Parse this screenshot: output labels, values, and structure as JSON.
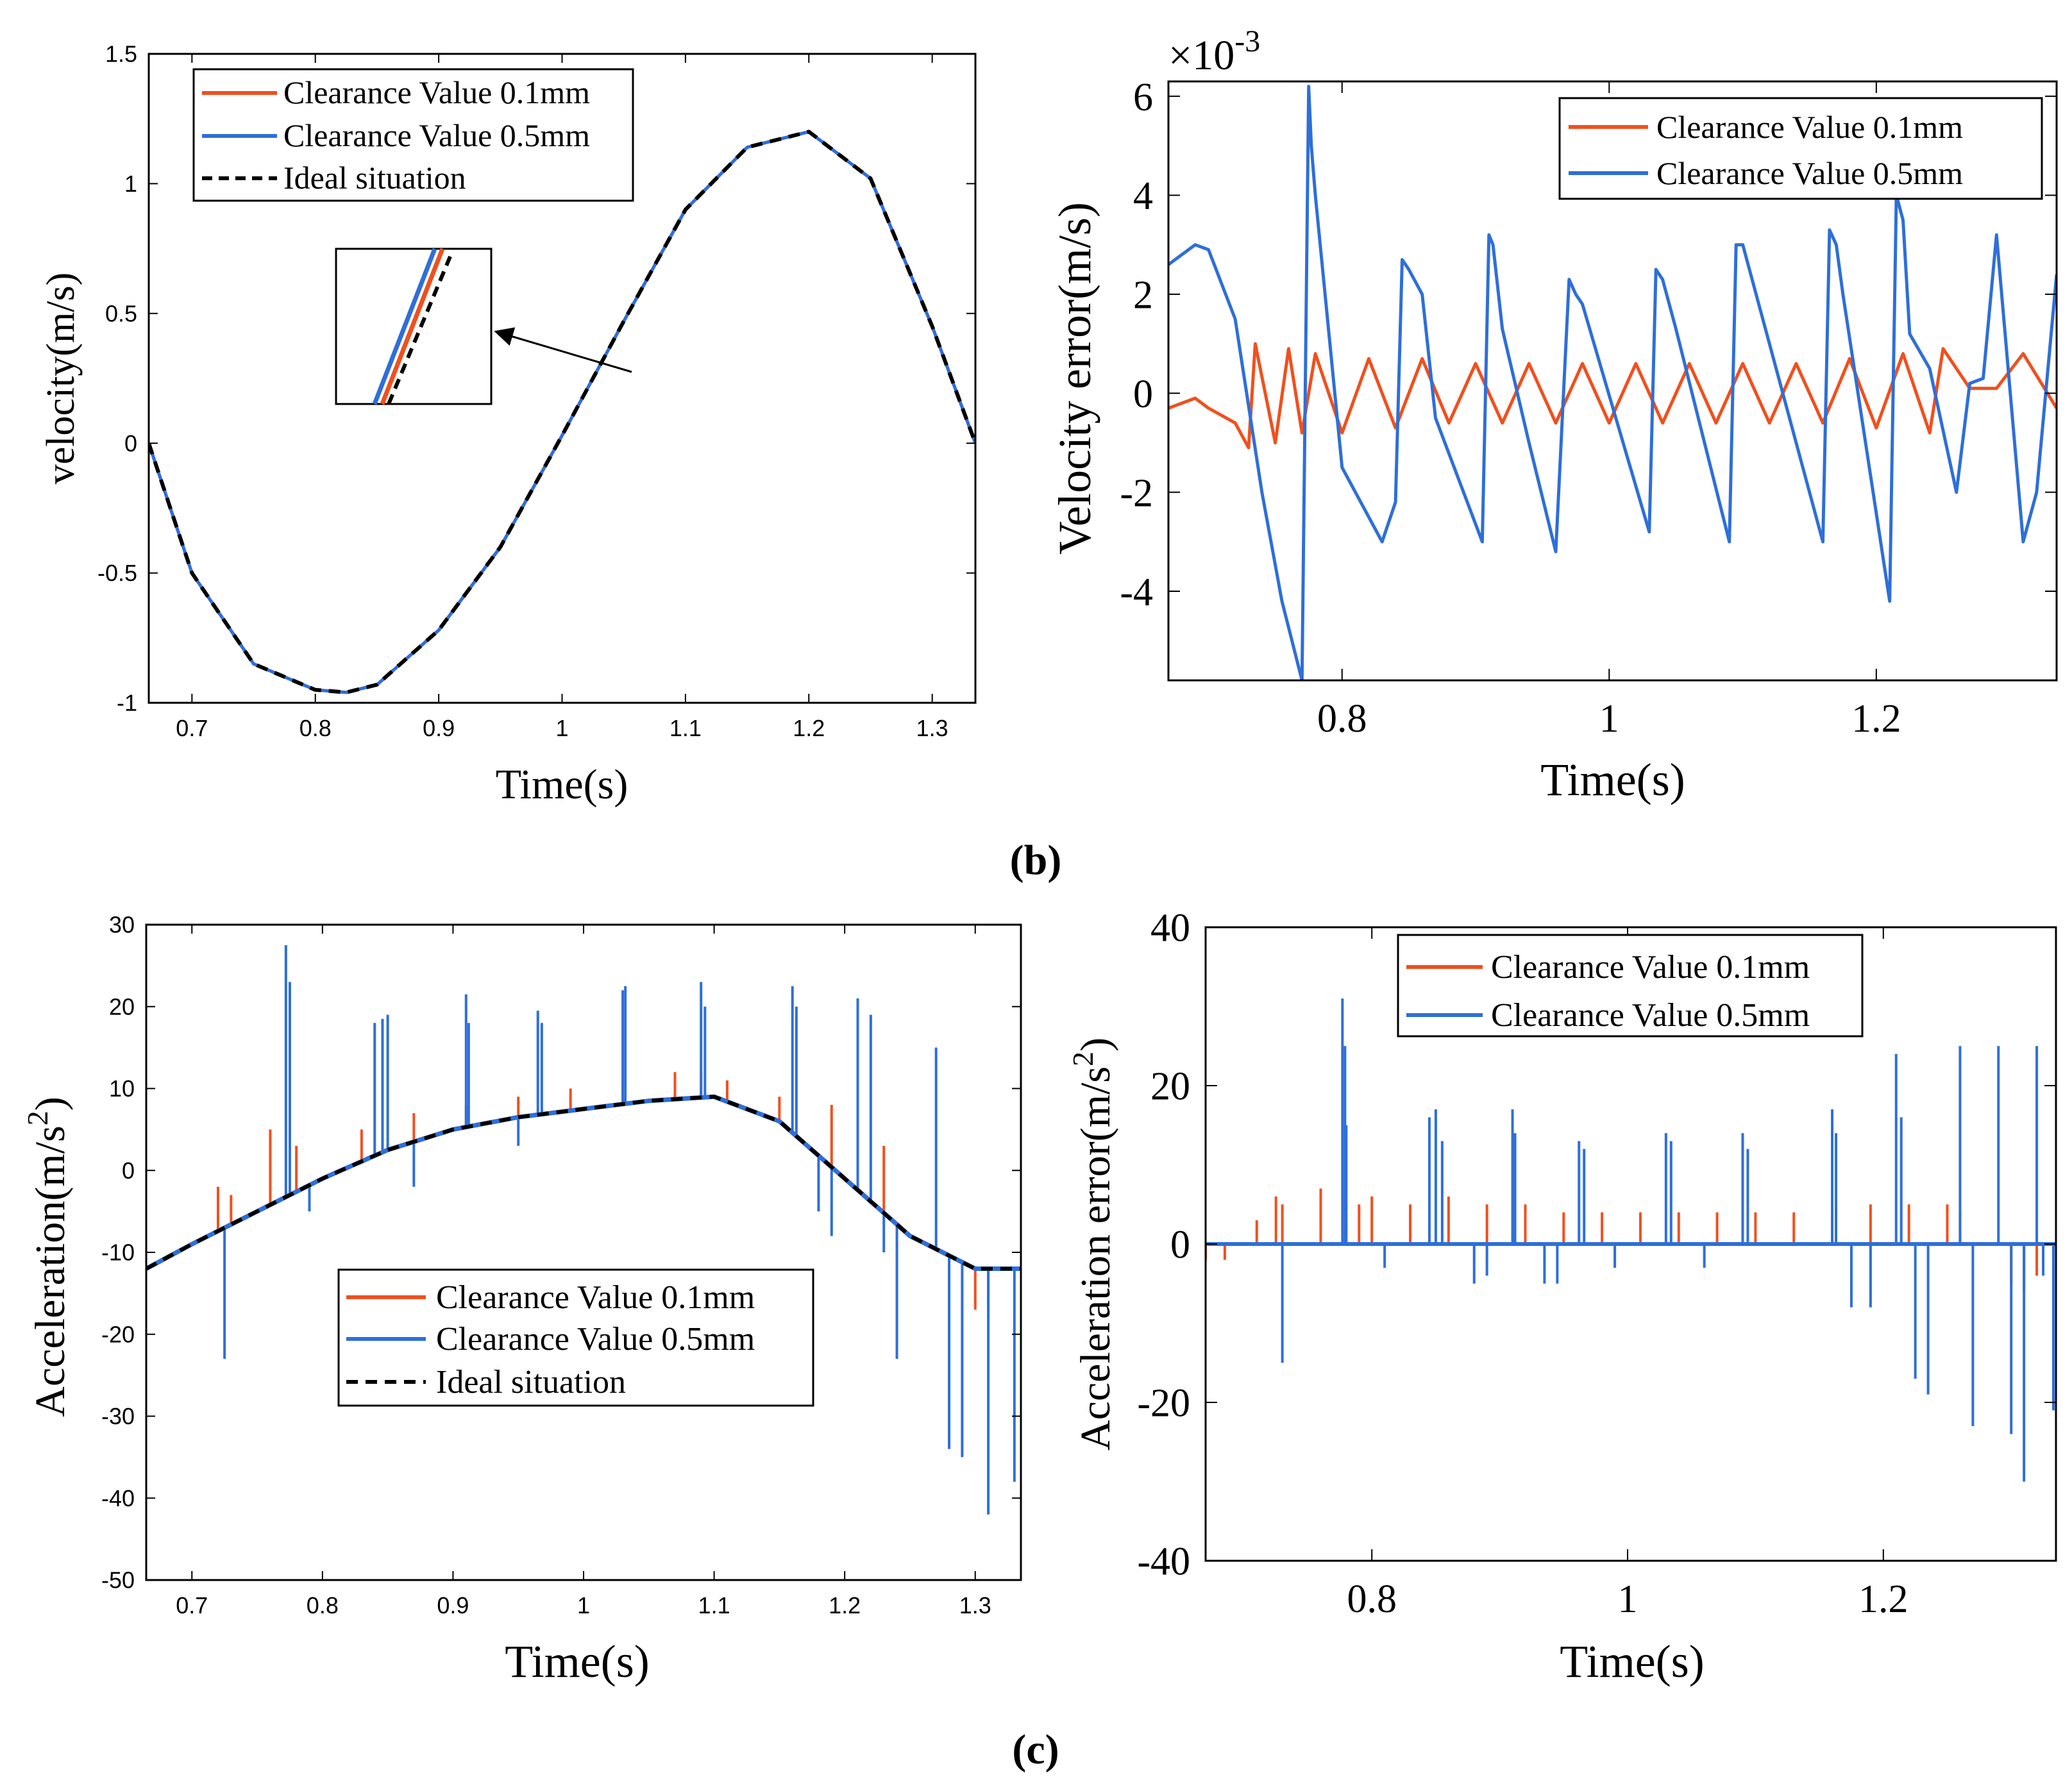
{
  "figure": {
    "caption_b": "(b)",
    "caption_c": "(c)"
  },
  "chart_data": [
    {
      "id": "velocity",
      "type": "line",
      "title": "",
      "xlabel": "Time(s)",
      "ylabel": "velocity(m/s)",
      "xlim": [
        0.665,
        1.335
      ],
      "ylim": [
        -1,
        1.5
      ],
      "xticks": [
        0.7,
        0.8,
        0.9,
        1,
        1.1,
        1.2,
        1.3
      ],
      "xtick_labels": [
        "0.7",
        "0.8",
        "0.9",
        "1",
        "1.1",
        "1.2",
        "1.3"
      ],
      "yticks": [
        -1,
        -0.5,
        0,
        0.5,
        1,
        1.5
      ],
      "ytick_labels": [
        "-1",
        "-0.5",
        "0",
        "0.5",
        "1",
        "1.5"
      ],
      "legend_position": "top-left",
      "series": [
        {
          "name": "Clearance Value 0.1mm",
          "color": "#f0501e",
          "style": "solid",
          "x": [
            0.665,
            0.7,
            0.75,
            0.8,
            0.825,
            0.85,
            0.9,
            0.95,
            1.0,
            1.05,
            1.1,
            1.15,
            1.2,
            1.25,
            1.3,
            1.335
          ],
          "y": [
            0,
            -0.5,
            -0.85,
            -0.95,
            -0.96,
            -0.93,
            -0.72,
            -0.4,
            0.03,
            0.47,
            0.9,
            1.14,
            1.2,
            1.02,
            0.45,
            0
          ]
        },
        {
          "name": "Clearance Value 0.5mm",
          "color": "#2e6fd8",
          "style": "solid",
          "x": [
            0.665,
            0.7,
            0.75,
            0.8,
            0.825,
            0.85,
            0.9,
            0.95,
            1.0,
            1.05,
            1.1,
            1.15,
            1.2,
            1.25,
            1.3,
            1.335
          ],
          "y": [
            0,
            -0.5,
            -0.85,
            -0.95,
            -0.96,
            -0.93,
            -0.72,
            -0.4,
            0.03,
            0.47,
            0.9,
            1.14,
            1.2,
            1.02,
            0.45,
            0
          ]
        },
        {
          "name": "Ideal situation",
          "color": "#000000",
          "style": "dashed",
          "x": [
            0.665,
            0.7,
            0.75,
            0.8,
            0.825,
            0.85,
            0.9,
            0.95,
            1.0,
            1.05,
            1.1,
            1.15,
            1.2,
            1.25,
            1.3,
            1.335
          ],
          "y": [
            0,
            -0.5,
            -0.85,
            -0.95,
            -0.96,
            -0.93,
            -0.72,
            -0.4,
            0.03,
            0.47,
            0.9,
            1.14,
            1.2,
            1.02,
            0.45,
            0
          ]
        }
      ],
      "inset": {
        "description": "zoomed view of overlapping lines",
        "points_to_x": 1.055
      }
    },
    {
      "id": "velocity_error",
      "type": "line",
      "title": "",
      "xlabel": "Time(s)",
      "ylabel": "Velocity error(m/s)",
      "exponent_label": "×10",
      "exponent_power": "-3",
      "xlim": [
        0.67,
        1.335
      ],
      "ylim": [
        -5.8,
        6.3
      ],
      "xticks": [
        0.8,
        1,
        1.2
      ],
      "xtick_labels": [
        "0.8",
        "1",
        "1.2"
      ],
      "yticks": [
        -4,
        -2,
        0,
        2,
        4,
        6
      ],
      "ytick_labels": [
        "-4",
        "-2",
        "0",
        "2",
        "4",
        "6"
      ],
      "legend_position": "top-right",
      "series": [
        {
          "name": "Clearance Value 0.1mm",
          "color": "#f0501e",
          "style": "solid",
          "x": [
            0.67,
            0.69,
            0.7,
            0.72,
            0.73,
            0.735,
            0.75,
            0.76,
            0.77,
            0.78,
            0.8,
            0.82,
            0.84,
            0.86,
            0.88,
            0.9,
            0.92,
            0.94,
            0.96,
            0.98,
            1.0,
            1.02,
            1.04,
            1.06,
            1.08,
            1.1,
            1.12,
            1.14,
            1.16,
            1.18,
            1.2,
            1.22,
            1.24,
            1.25,
            1.27,
            1.29,
            1.31,
            1.335
          ],
          "y": [
            -0.3,
            -0.1,
            -0.3,
            -0.6,
            -1.1,
            1.0,
            -1.0,
            0.9,
            -0.8,
            0.8,
            -0.8,
            0.7,
            -0.7,
            0.7,
            -0.6,
            0.6,
            -0.6,
            0.6,
            -0.6,
            0.6,
            -0.6,
            0.6,
            -0.6,
            0.6,
            -0.6,
            0.6,
            -0.6,
            0.6,
            -0.6,
            0.7,
            -0.7,
            0.8,
            -0.8,
            0.9,
            0.1,
            0.1,
            0.8,
            -0.3
          ]
        },
        {
          "name": "Clearance Value 0.5mm",
          "color": "#2e6fd8",
          "style": "solid",
          "x": [
            0.67,
            0.69,
            0.7,
            0.72,
            0.74,
            0.755,
            0.77,
            0.775,
            0.777,
            0.78,
            0.8,
            0.83,
            0.84,
            0.845,
            0.85,
            0.86,
            0.87,
            0.905,
            0.91,
            0.913,
            0.92,
            0.94,
            0.96,
            0.97,
            0.975,
            0.98,
            1.03,
            1.035,
            1.04,
            1.05,
            1.09,
            1.095,
            1.1,
            1.11,
            1.16,
            1.165,
            1.17,
            1.175,
            1.21,
            1.215,
            1.22,
            1.225,
            1.24,
            1.26,
            1.27,
            1.28,
            1.29,
            1.31,
            1.32,
            1.335
          ],
          "y": [
            2.6,
            3.0,
            2.9,
            1.5,
            -2.0,
            -4.2,
            -5.8,
            6.2,
            5.0,
            4.0,
            -1.5,
            -3.0,
            -2.2,
            2.7,
            2.5,
            2.0,
            -0.5,
            -3.0,
            3.2,
            3.0,
            1.3,
            -1.0,
            -3.2,
            2.3,
            2.0,
            1.8,
            -2.8,
            2.5,
            2.3,
            1.3,
            -3.0,
            3.0,
            3.0,
            2.0,
            -3.0,
            3.3,
            3.0,
            2.0,
            -4.2,
            4.0,
            3.5,
            1.2,
            0.5,
            -2.0,
            0.2,
            0.3,
            3.2,
            -3.0,
            -2.0,
            2.4
          ]
        }
      ]
    },
    {
      "id": "acceleration",
      "type": "line",
      "title": "",
      "xlabel": "Time(s)",
      "ylabel": "Acceleration(m/s",
      "ylabel_sup": "2",
      "ylabel_end": ")",
      "xlim": [
        0.665,
        1.335
      ],
      "ylim": [
        -50,
        30
      ],
      "xticks": [
        0.7,
        0.8,
        0.9,
        1,
        1.1,
        1.2,
        1.3
      ],
      "xtick_labels": [
        "0.7",
        "0.8",
        "0.9",
        "1",
        "1.1",
        "1.2",
        "1.3"
      ],
      "yticks": [
        -50,
        -40,
        -30,
        -20,
        -10,
        0,
        10,
        20,
        30
      ],
      "ytick_labels": [
        "-50",
        "-40",
        "-30",
        "-20",
        "-10",
        "0",
        "10",
        "20",
        "30"
      ],
      "legend_position": "bottom-center",
      "baseline": {
        "x": [
          0.665,
          0.7,
          0.75,
          0.8,
          0.85,
          0.9,
          0.95,
          1.0,
          1.05,
          1.1,
          1.15,
          1.2,
          1.25,
          1.3,
          1.335
        ],
        "y": [
          -12,
          -9,
          -5,
          -1,
          2.5,
          5,
          6.5,
          7.5,
          8.5,
          9,
          6,
          -1,
          -8,
          -12,
          -12
        ]
      },
      "series": [
        {
          "name": "Clearance Value 0.1mm",
          "color": "#f0501e",
          "style": "spikes",
          "spike_x": [
            0.72,
            0.73,
            0.76,
            0.78,
            0.83,
            0.87,
            0.91,
            0.95,
            0.99,
            1.03,
            1.07,
            1.09,
            1.11,
            1.15,
            1.19,
            1.23,
            1.3,
            1.31
          ],
          "spike_y": [
            -2,
            -3,
            5,
            3,
            5,
            7,
            8,
            9,
            10,
            11,
            12,
            12,
            11,
            9,
            8,
            3,
            -17,
            -18
          ]
        },
        {
          "name": "Clearance Value 0.5mm",
          "color": "#2e6fd8",
          "style": "spikes",
          "spike_x": [
            0.725,
            0.772,
            0.775,
            0.79,
            0.84,
            0.846,
            0.85,
            0.87,
            0.91,
            0.912,
            0.95,
            0.965,
            0.968,
            1.03,
            1.032,
            1.09,
            1.093,
            1.16,
            1.163,
            1.18,
            1.19,
            1.21,
            1.22,
            1.23,
            1.24,
            1.27,
            1.28,
            1.29,
            1.31,
            1.33
          ],
          "spike_y": [
            -23,
            27.5,
            23,
            -5,
            18,
            18.5,
            19,
            -2,
            21.5,
            18,
            3,
            19.5,
            18,
            22,
            22.5,
            23,
            20,
            22.5,
            20,
            -5,
            -8,
            21,
            19,
            -10,
            -23,
            15,
            -34,
            -35,
            -42,
            -38
          ]
        },
        {
          "name": "Ideal situation",
          "color": "#000000",
          "style": "dashed",
          "x": [
            0.665,
            0.7,
            0.75,
            0.8,
            0.85,
            0.9,
            0.95,
            1.0,
            1.05,
            1.1,
            1.15,
            1.2,
            1.25,
            1.3,
            1.335
          ],
          "y": [
            -12,
            -9,
            -5,
            -1,
            2.5,
            5,
            6.5,
            7.5,
            8.5,
            9,
            6,
            -1,
            -8,
            -12,
            -12
          ]
        }
      ]
    },
    {
      "id": "acceleration_error",
      "type": "line",
      "title": "",
      "xlabel": "Time(s)",
      "ylabel": "Acceleration error(m/s",
      "ylabel_sup": "2",
      "ylabel_end": ")",
      "xlim": [
        0.67,
        1.335
      ],
      "ylim": [
        -40,
        40
      ],
      "xticks": [
        0.8,
        1,
        1.2
      ],
      "xtick_labels": [
        "0.8",
        "1",
        "1.2"
      ],
      "yticks": [
        -40,
        -20,
        0,
        20,
        40
      ],
      "ytick_labels": [
        "-40",
        "-20",
        "0",
        "20",
        "40"
      ],
      "legend_position": "top-center",
      "series": [
        {
          "name": "Clearance Value 0.1mm",
          "color": "#f0501e",
          "style": "spikes",
          "spike_x": [
            0.67,
            0.685,
            0.71,
            0.725,
            0.73,
            0.76,
            0.79,
            0.8,
            0.83,
            0.86,
            0.89,
            0.92,
            0.95,
            0.98,
            1.01,
            1.04,
            1.07,
            1.1,
            1.13,
            1.16,
            1.19,
            1.22,
            1.25,
            1.26,
            1.3,
            1.31,
            1.32
          ],
          "spike_y": [
            -2,
            -2,
            3,
            6,
            5,
            7,
            5,
            6,
            5,
            6,
            5,
            5,
            4,
            4,
            4,
            4,
            4,
            4,
            4,
            4,
            5,
            5,
            5,
            4,
            -5,
            -6,
            -4
          ]
        },
        {
          "name": "Clearance Value 0.5mm",
          "color": "#2e6fd8",
          "style": "spikes",
          "spike_x": [
            0.73,
            0.777,
            0.779,
            0.78,
            0.81,
            0.845,
            0.85,
            0.855,
            0.88,
            0.89,
            0.91,
            0.912,
            0.935,
            0.945,
            0.962,
            0.966,
            0.99,
            1.03,
            1.034,
            1.06,
            1.09,
            1.094,
            1.16,
            1.163,
            1.175,
            1.19,
            1.21,
            1.214,
            1.225,
            1.235,
            1.26,
            1.27,
            1.29,
            1.3,
            1.31,
            1.32,
            1.325,
            1.333
          ],
          "spike_y": [
            -15,
            31,
            25,
            15,
            -3,
            16,
            17,
            13,
            -5,
            -4,
            17,
            14,
            -5,
            -5,
            13,
            12,
            -3,
            14,
            13,
            -3,
            14,
            12,
            17,
            14,
            -8,
            -8,
            24,
            16,
            -17,
            -19,
            25,
            -23,
            25,
            -24,
            -30,
            25,
            -4,
            -21
          ]
        }
      ]
    }
  ]
}
